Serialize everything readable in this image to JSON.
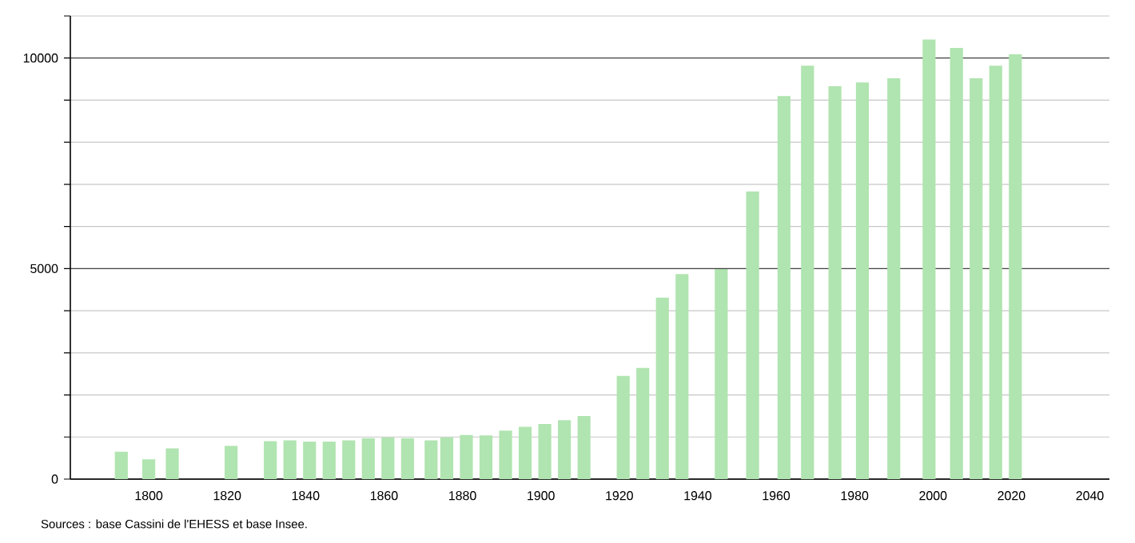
{
  "chart_data": {
    "type": "bar",
    "x": [
      1793,
      1800,
      1806,
      1821,
      1831,
      1836,
      1841,
      1846,
      1851,
      1856,
      1861,
      1866,
      1872,
      1876,
      1881,
      1886,
      1891,
      1896,
      1901,
      1906,
      1911,
      1921,
      1926,
      1931,
      1936,
      1946,
      1954,
      1962,
      1968,
      1975,
      1982,
      1990,
      1999,
      2006,
      2011,
      2016,
      2021
    ],
    "values": [
      650,
      470,
      730,
      790,
      900,
      920,
      890,
      890,
      920,
      970,
      990,
      970,
      920,
      990,
      1050,
      1040,
      1150,
      1240,
      1310,
      1400,
      1500,
      2450,
      2640,
      4310,
      4870,
      4990,
      6830,
      9100,
      9820,
      9330,
      9420,
      9520,
      10440,
      10240,
      9520,
      9820,
      10090
    ],
    "color": "#b0e4b0",
    "xlim": [
      1780,
      2045
    ],
    "xticks": [
      1800,
      1820,
      1840,
      1860,
      1880,
      1900,
      1920,
      1940,
      1960,
      1980,
      2000,
      2020,
      2040
    ],
    "ylim": [
      0,
      11000
    ],
    "yticks": [
      0,
      {
        "value": 1000,
        "label": null
      },
      {
        "value": 2000,
        "label": null
      },
      {
        "value": 3000,
        "label": null
      },
      {
        "value": 4000,
        "label": null
      },
      5000,
      {
        "value": 6000,
        "label": null
      },
      {
        "value": 7000,
        "label": null
      },
      {
        "value": 8000,
        "label": null
      },
      {
        "value": 9000,
        "label": null
      },
      10000,
      {
        "value": 11000,
        "label": null
      }
    ],
    "grid": "y",
    "annotations": [
      "Sources : base Cassini de l'EHESS et base Insee."
    ]
  }
}
